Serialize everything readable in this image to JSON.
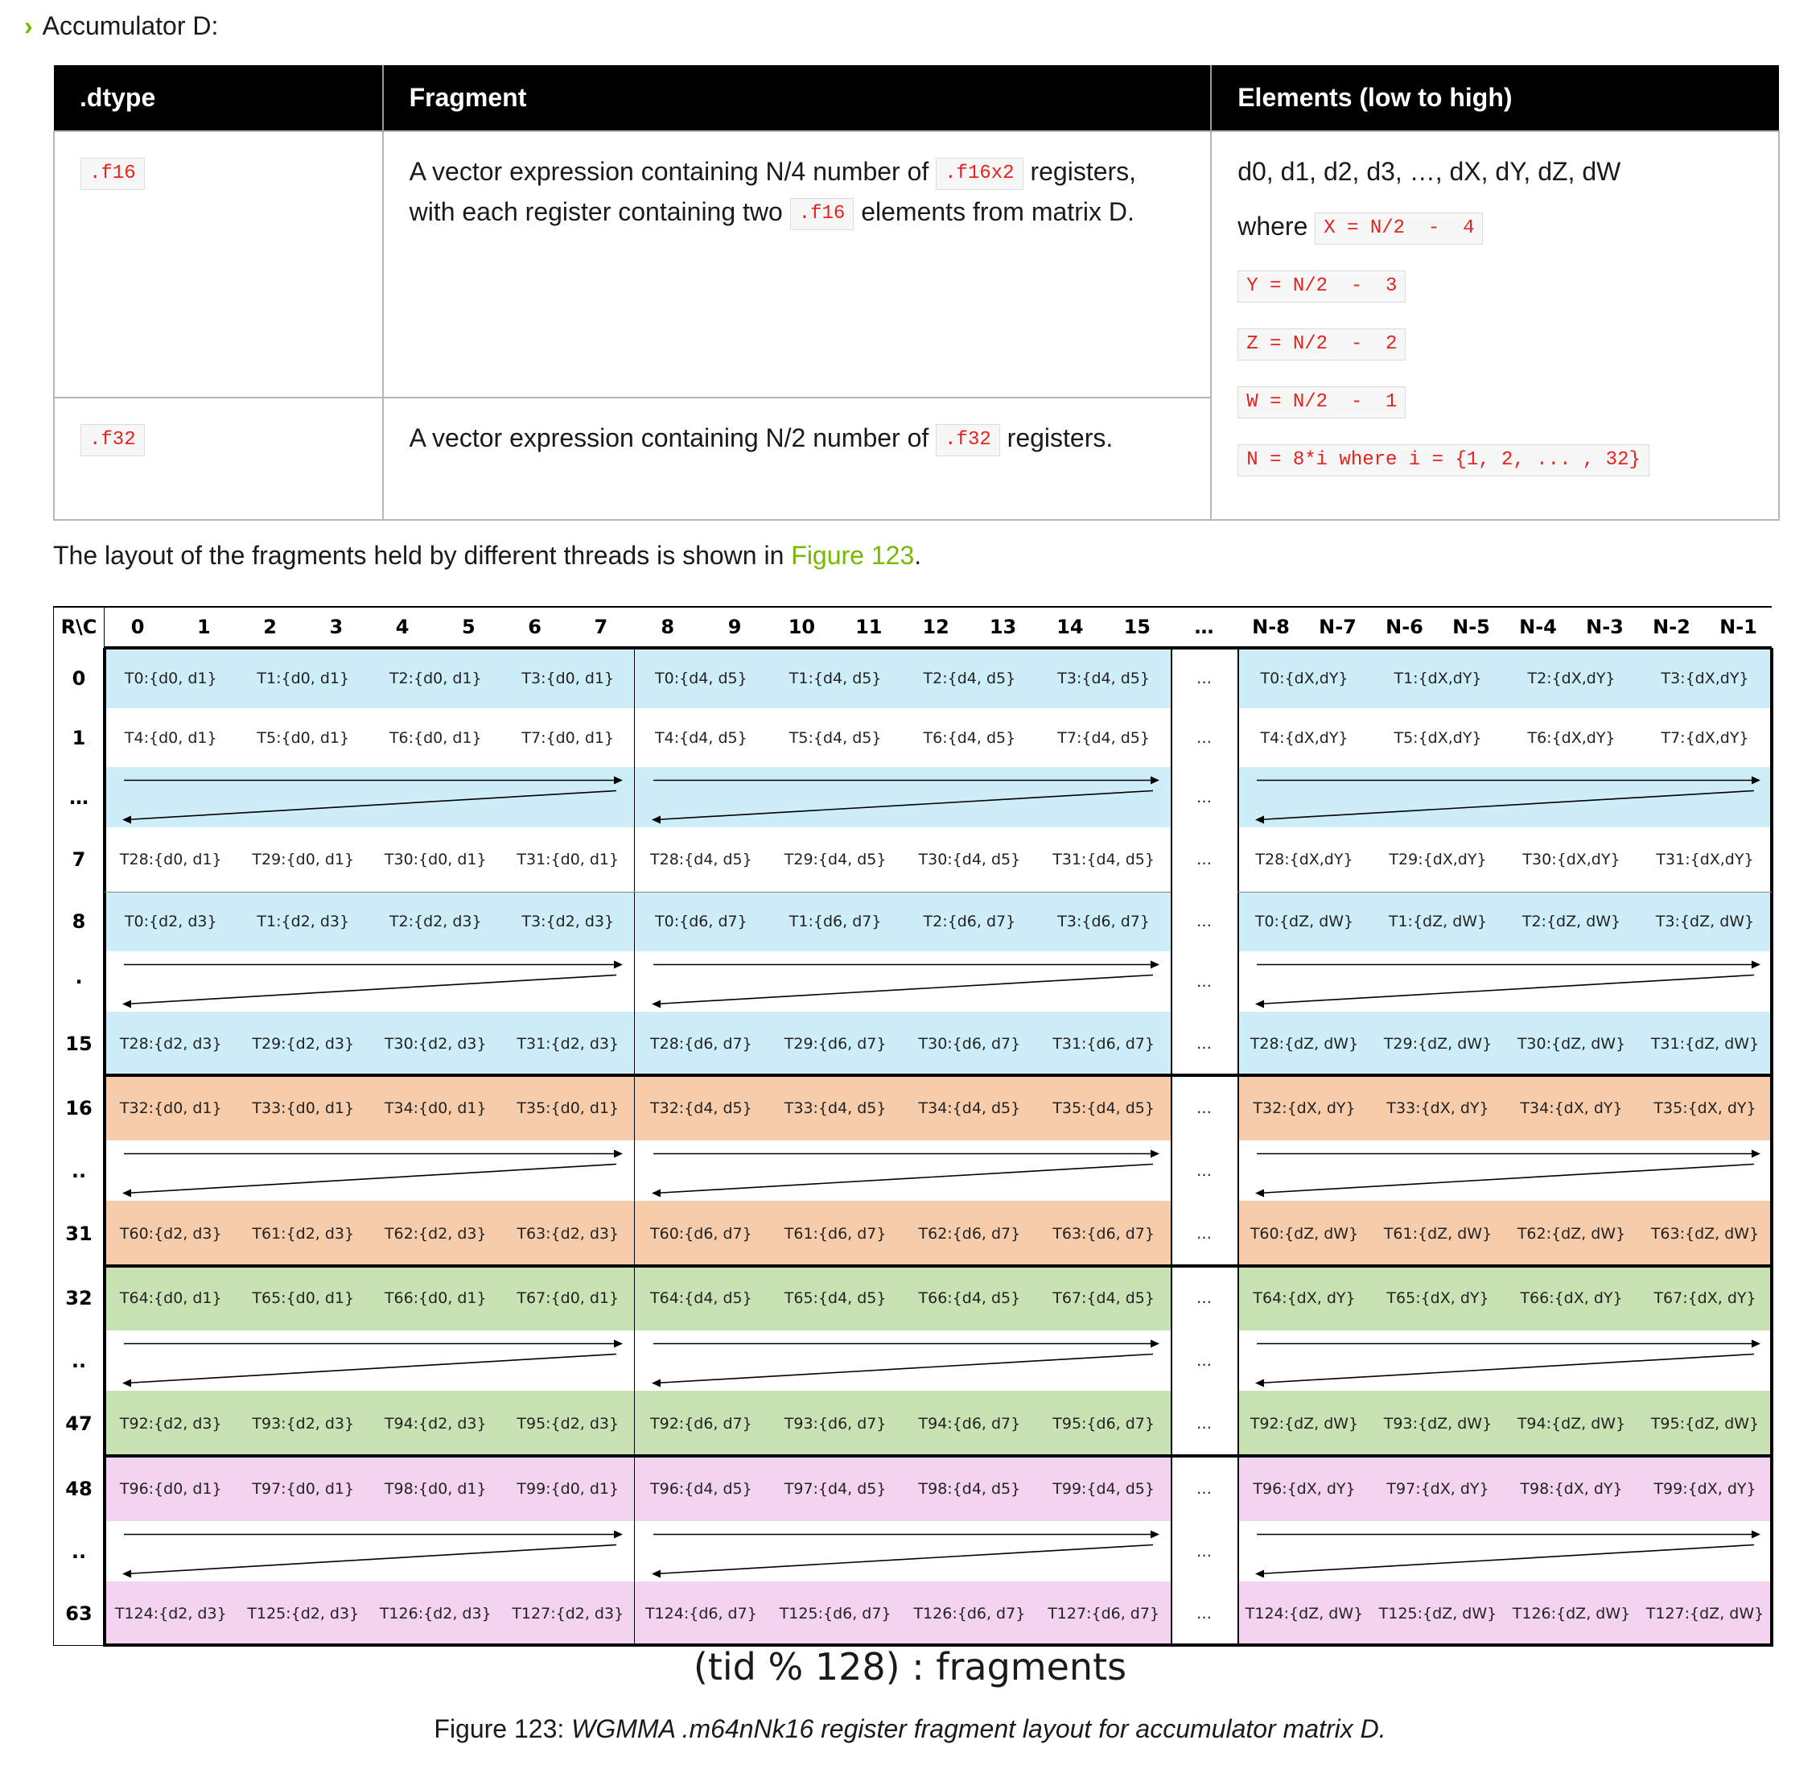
{
  "accumulator_heading": "Accumulator D:",
  "table": {
    "headers": [
      ".dtype",
      "Fragment",
      "Elements (low to high)"
    ],
    "rows": [
      {
        "dtype": ".f16",
        "fragment_prefix": "A vector expression containing N/4 number of",
        "fragment_code1": ".f16x2",
        "fragment_mid": "registers, with each register containing two",
        "fragment_code2": ".f16",
        "fragment_suffix": "elements from matrix D."
      },
      {
        "dtype": ".f32",
        "fragment_prefix": "A vector expression containing N/2 number of",
        "fragment_code1": ".f32",
        "fragment_suffix": "registers."
      }
    ],
    "elements": {
      "list": "d0, d1, d2, d3, …, dX, dY, dZ, dW",
      "where_word": "where",
      "x_def": "X = N/2  -  4",
      "y_def": "Y = N/2  -  3",
      "z_def": "Z = N/2  -  2",
      "w_def": "W = N/2  -  1",
      "n_def": "N = 8*i where i = {1, 2, ... , 32}"
    }
  },
  "layout_sentence": {
    "prefix": "The layout of the fragments held by different threads is shown in ",
    "link": "Figure 123",
    "suffix": "."
  },
  "grid": {
    "corner": "R\\C",
    "col_headers": [
      "0",
      "1",
      "2",
      "3",
      "4",
      "5",
      "6",
      "7",
      "8",
      "9",
      "10",
      "11",
      "12",
      "13",
      "14",
      "15",
      "…",
      "N-8",
      "N-7",
      "N-6",
      "N-5",
      "N-4",
      "N-3",
      "N-2",
      "N-1"
    ],
    "row_labels": [
      "0",
      "1",
      "…",
      "7",
      "8",
      "·",
      "15",
      "16",
      "..",
      "31",
      "32",
      "..",
      "47",
      "48",
      "..",
      "63"
    ],
    "ellipsis": "…",
    "colors": {
      "blue": "#cdeef8",
      "orange": "#f6ccab",
      "green": "#c8e2b4",
      "pink": "#f3d3ef"
    },
    "rows": [
      {
        "type": "text",
        "color": "blue",
        "a": [
          "T0:{d0, d1}",
          "T1:{d0, d1}",
          "T2:{d0, d1}",
          "T3:{d0, d1}"
        ],
        "b": [
          "T0:{d4, d5}",
          "T1:{d4, d5}",
          "T2:{d4, d5}",
          "T3:{d4, d5}"
        ],
        "c": [
          "T0:{dX,dY}",
          "T1:{dX,dY}",
          "T2:{dX,dY}",
          "T3:{dX,dY}"
        ]
      },
      {
        "type": "text",
        "color": "white",
        "a": [
          "T4:{d0, d1}",
          "T5:{d0, d1}",
          "T6:{d0, d1}",
          "T7:{d0, d1}"
        ],
        "b": [
          "T4:{d4, d5}",
          "T5:{d4, d5}",
          "T6:{d4, d5}",
          "T7:{d4, d5}"
        ],
        "c": [
          "T4:{dX,dY}",
          "T5:{dX,dY}",
          "T6:{dX,dY}",
          "T7:{dX,dY}"
        ]
      },
      {
        "type": "arrow",
        "color": "blue"
      },
      {
        "type": "text",
        "color": "white",
        "a": [
          "T28:{d0, d1}",
          "T29:{d0, d1}",
          "T30:{d0, d1}",
          "T31:{d0, d1}"
        ],
        "b": [
          "T28:{d4, d5}",
          "T29:{d4, d5}",
          "T30:{d4, d5}",
          "T31:{d4, d5}"
        ],
        "c": [
          "T28:{dX,dY}",
          "T29:{dX,dY}",
          "T30:{dX,dY}",
          "T31:{dX,dY}"
        ]
      },
      {
        "type": "text",
        "color": "blue",
        "a": [
          "T0:{d2, d3}",
          "T1:{d2, d3}",
          "T2:{d2, d3}",
          "T3:{d2, d3}"
        ],
        "b": [
          "T0:{d6, d7}",
          "T1:{d6, d7}",
          "T2:{d6, d7}",
          "T3:{d6, d7}"
        ],
        "c": [
          "T0:{dZ, dW}",
          "T1:{dZ, dW}",
          "T2:{dZ, dW}",
          "T3:{dZ, dW}"
        ]
      },
      {
        "type": "arrow",
        "color": "white"
      },
      {
        "type": "text",
        "color": "blue",
        "a": [
          "T28:{d2, d3}",
          "T29:{d2, d3}",
          "T30:{d2, d3}",
          "T31:{d2, d3}"
        ],
        "b": [
          "T28:{d6, d7}",
          "T29:{d6, d7}",
          "T30:{d6, d7}",
          "T31:{d6, d7}"
        ],
        "c": [
          "T28:{dZ, dW}",
          "T29:{dZ, dW}",
          "T30:{dZ, dW}",
          "T31:{dZ, dW}"
        ]
      },
      {
        "type": "text",
        "color": "orange",
        "a": [
          "T32:{d0, d1}",
          "T33:{d0, d1}",
          "T34:{d0, d1}",
          "T35:{d0, d1}"
        ],
        "b": [
          "T32:{d4, d5}",
          "T33:{d4, d5}",
          "T34:{d4, d5}",
          "T35:{d4, d5}"
        ],
        "c": [
          "T32:{dX, dY}",
          "T33:{dX, dY}",
          "T34:{dX, dY}",
          "T35:{dX, dY}"
        ]
      },
      {
        "type": "arrow",
        "color": "white"
      },
      {
        "type": "text",
        "color": "orange",
        "a": [
          "T60:{d2, d3}",
          "T61:{d2, d3}",
          "T62:{d2, d3}",
          "T63:{d2, d3}"
        ],
        "b": [
          "T60:{d6, d7}",
          "T61:{d6, d7}",
          "T62:{d6, d7}",
          "T63:{d6, d7}"
        ],
        "c": [
          "T60:{dZ, dW}",
          "T61:{dZ, dW}",
          "T62:{dZ, dW}",
          "T63:{dZ, dW}"
        ]
      },
      {
        "type": "text",
        "color": "green",
        "a": [
          "T64:{d0, d1}",
          "T65:{d0, d1}",
          "T66:{d0, d1}",
          "T67:{d0, d1}"
        ],
        "b": [
          "T64:{d4, d5}",
          "T65:{d4, d5}",
          "T66:{d4, d5}",
          "T67:{d4, d5}"
        ],
        "c": [
          "T64:{dX, dY}",
          "T65:{dX, dY}",
          "T66:{dX, dY}",
          "T67:{dX, dY}"
        ]
      },
      {
        "type": "arrow",
        "color": "white"
      },
      {
        "type": "text",
        "color": "green",
        "a": [
          "T92:{d2, d3}",
          "T93:{d2, d3}",
          "T94:{d2, d3}",
          "T95:{d2, d3}"
        ],
        "b": [
          "T92:{d6, d7}",
          "T93:{d6, d7}",
          "T94:{d6, d7}",
          "T95:{d6, d7}"
        ],
        "c": [
          "T92:{dZ, dW}",
          "T93:{dZ, dW}",
          "T94:{dZ, dW}",
          "T95:{dZ, dW}"
        ]
      },
      {
        "type": "text",
        "color": "pink",
        "a": [
          "T96:{d0, d1}",
          "T97:{d0, d1}",
          "T98:{d0, d1}",
          "T99:{d0, d1}"
        ],
        "b": [
          "T96:{d4, d5}",
          "T97:{d4, d5}",
          "T98:{d4, d5}",
          "T99:{d4, d5}"
        ],
        "c": [
          "T96:{dX, dY}",
          "T97:{dX, dY}",
          "T98:{dX, dY}",
          "T99:{dX, dY}"
        ]
      },
      {
        "type": "arrow",
        "color": "white"
      },
      {
        "type": "text",
        "color": "pink",
        "a": [
          "T124:{d2, d3}",
          "T125:{d2, d3}",
          "T126:{d2, d3}",
          "T127:{d2, d3}"
        ],
        "b": [
          "T124:{d6, d7}",
          "T125:{d6, d7}",
          "T126:{d6, d7}",
          "T127:{d6, d7}"
        ],
        "c": [
          "T124:{dZ, dW}",
          "T125:{dZ, dW}",
          "T126:{dZ, dW}",
          "T127:{dZ, dW}"
        ]
      }
    ]
  },
  "figure_subtitle": "(tid % 128) : fragments",
  "figure_caption": {
    "label": "Figure 123: ",
    "title": "WGMMA .m64nNk16 register fragment layout for accumulator matrix D."
  }
}
